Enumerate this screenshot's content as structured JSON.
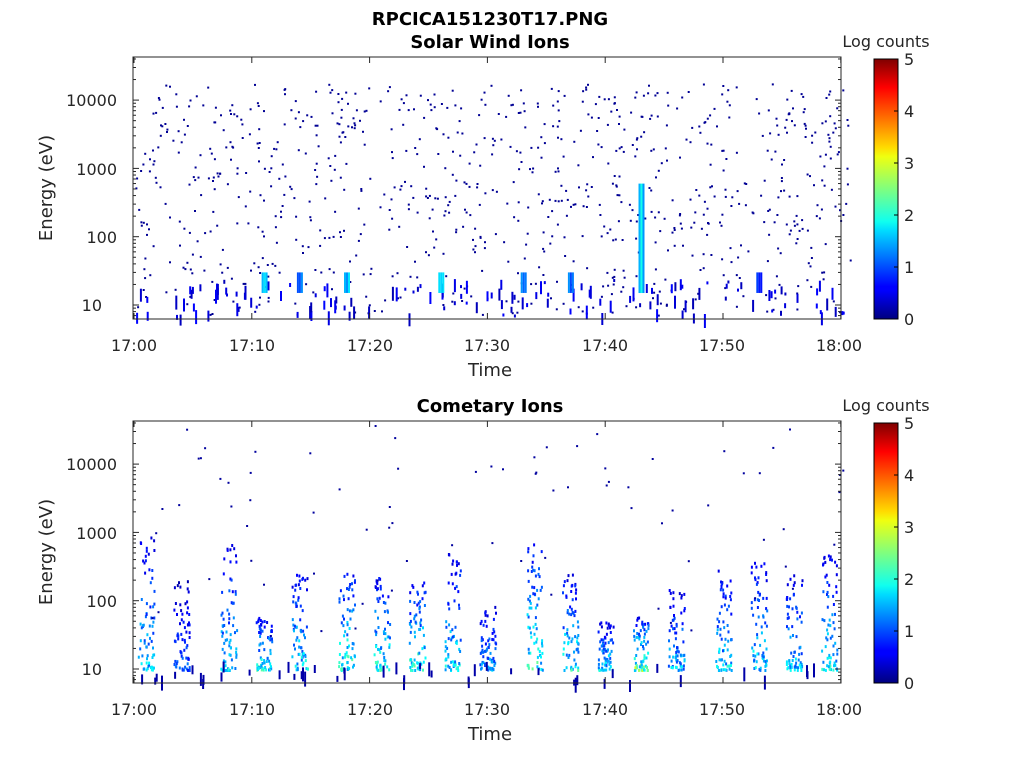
{
  "figure": {
    "title": "RPCICA151230T17.PNG"
  },
  "chart_data": [
    {
      "type": "heatmap",
      "title": "Solar Wind Ions",
      "xlabel": "Time",
      "ylabel": "Energy (eV)",
      "x_ticks": [
        "17:00",
        "17:10",
        "17:20",
        "17:30",
        "17:40",
        "17:50",
        "18:00"
      ],
      "y_ticks": [
        "10",
        "100",
        "1000",
        "10000"
      ],
      "y_scale": "log",
      "ylim": [
        6,
        40000
      ],
      "xlim": [
        "17:00",
        "18:01"
      ],
      "colorbar": {
        "label": "Log counts",
        "ticks": [
          "0",
          "1",
          "2",
          "3",
          "4",
          "5"
        ],
        "range": [
          0,
          5
        ],
        "colormap": "jet"
      },
      "background_counts_log": 0.1,
      "enhancements": [
        {
          "time": "17:11",
          "energy_range_eV": [
            15,
            30
          ],
          "log_counts": 1.9
        },
        {
          "time": "17:14",
          "energy_range_eV": [
            15,
            30
          ],
          "log_counts": 1.6
        },
        {
          "time": "17:18",
          "energy_range_eV": [
            15,
            30
          ],
          "log_counts": 1.9
        },
        {
          "time": "17:26",
          "energy_range_eV": [
            15,
            30
          ],
          "log_counts": 1.9
        },
        {
          "time": "17:33",
          "energy_range_eV": [
            15,
            30
          ],
          "log_counts": 1.5
        },
        {
          "time": "17:37",
          "energy_range_eV": [
            15,
            30
          ],
          "log_counts": 1.4
        },
        {
          "time": "17:43",
          "energy_range_eV": [
            15,
            600
          ],
          "log_counts": 2.0
        },
        {
          "time": "17:53",
          "energy_range_eV": [
            15,
            30
          ],
          "log_counts": 1.0
        }
      ]
    },
    {
      "type": "heatmap",
      "title": "Cometary Ions",
      "xlabel": "Time",
      "ylabel": "Energy (eV)",
      "x_ticks": [
        "17:00",
        "17:10",
        "17:20",
        "17:30",
        "17:40",
        "17:50",
        "18:00"
      ],
      "y_ticks": [
        "10",
        "100",
        "1000",
        "10000"
      ],
      "y_scale": "log",
      "ylim": [
        6,
        40000
      ],
      "xlim": [
        "17:00",
        "18:01"
      ],
      "colorbar": {
        "label": "Log counts",
        "ticks": [
          "0",
          "1",
          "2",
          "3",
          "4",
          "5"
        ],
        "range": [
          0,
          5
        ],
        "colormap": "jet"
      },
      "bursts": [
        {
          "time": "17:01",
          "energy_range_eV": [
            10,
            900
          ],
          "peak_log_counts": 2.0
        },
        {
          "time": "17:04",
          "energy_range_eV": [
            10,
            200
          ],
          "peak_log_counts": 1.3
        },
        {
          "time": "17:08",
          "energy_range_eV": [
            10,
            700
          ],
          "peak_log_counts": 2.1
        },
        {
          "time": "17:11",
          "energy_range_eV": [
            10,
            60
          ],
          "peak_log_counts": 2.5
        },
        {
          "time": "17:14",
          "energy_range_eV": [
            10,
            250
          ],
          "peak_log_counts": 2.3
        },
        {
          "time": "17:18",
          "energy_range_eV": [
            10,
            300
          ],
          "peak_log_counts": 2.6
        },
        {
          "time": "17:21",
          "energy_range_eV": [
            10,
            250
          ],
          "peak_log_counts": 2.5
        },
        {
          "time": "17:24",
          "energy_range_eV": [
            10,
            200
          ],
          "peak_log_counts": 2.6
        },
        {
          "time": "17:27",
          "energy_range_eV": [
            10,
            500
          ],
          "peak_log_counts": 2.2
        },
        {
          "time": "17:30",
          "energy_range_eV": [
            10,
            100
          ],
          "peak_log_counts": 1.8
        },
        {
          "time": "17:34",
          "energy_range_eV": [
            10,
            700
          ],
          "peak_log_counts": 2.6
        },
        {
          "time": "17:37",
          "energy_range_eV": [
            10,
            250
          ],
          "peak_log_counts": 2.4
        },
        {
          "time": "17:40",
          "energy_range_eV": [
            10,
            50
          ],
          "peak_log_counts": 2.2
        },
        {
          "time": "17:43",
          "energy_range_eV": [
            10,
            60
          ],
          "peak_log_counts": 3.0
        },
        {
          "time": "17:46",
          "energy_range_eV": [
            10,
            150
          ],
          "peak_log_counts": 2.0
        },
        {
          "time": "17:50",
          "energy_range_eV": [
            10,
            300
          ],
          "peak_log_counts": 2.2
        },
        {
          "time": "17:53",
          "energy_range_eV": [
            10,
            400
          ],
          "peak_log_counts": 2.2
        },
        {
          "time": "17:56",
          "energy_range_eV": [
            10,
            250
          ],
          "peak_log_counts": 2.0
        },
        {
          "time": "17:59",
          "energy_range_eV": [
            10,
            500
          ],
          "peak_log_counts": 2.3
        }
      ]
    }
  ]
}
